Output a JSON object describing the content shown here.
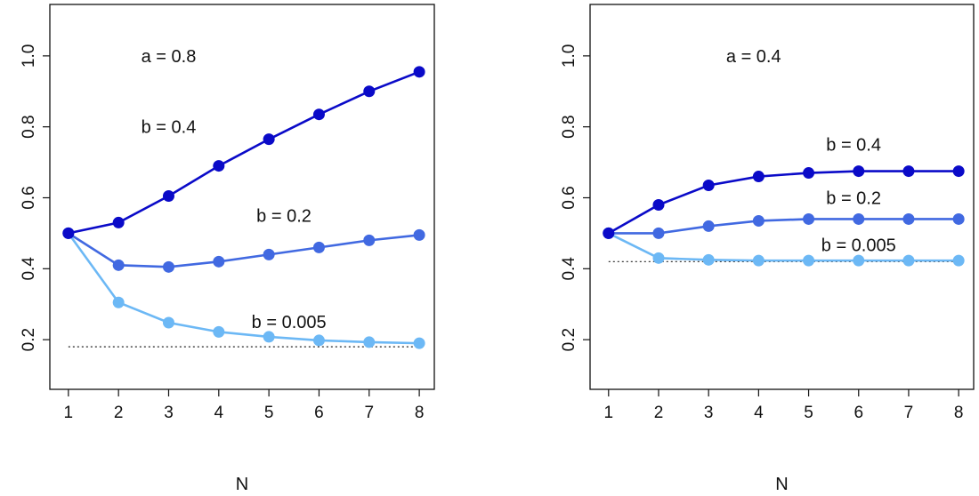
{
  "chart_data": [
    {
      "type": "line",
      "title": "",
      "xlabel": "N",
      "ylabel": "",
      "x": [
        1,
        2,
        3,
        4,
        5,
        6,
        7,
        8
      ],
      "xticks": [
        "1",
        "2",
        "3",
        "4",
        "5",
        "6",
        "7",
        "8"
      ],
      "yticks": [
        "0.2",
        "0.4",
        "0.6",
        "0.8",
        "1.0"
      ],
      "xlim": [
        0.63,
        8.3
      ],
      "ylim": [
        0.06,
        1.145
      ],
      "grid": false,
      "annotations": [
        "a = 0.8",
        "b = 0.4",
        "b = 0.2",
        "b = 0.005"
      ],
      "reference_line": {
        "y": 0.18,
        "style": "dotted"
      },
      "series": [
        {
          "name": "b = 0.4",
          "color": "#0a0ac8",
          "values": [
            0.5,
            0.53,
            0.605,
            0.69,
            0.765,
            0.835,
            0.9,
            0.955
          ]
        },
        {
          "name": "b = 0.2",
          "color": "#4169e1",
          "values": [
            0.5,
            0.41,
            0.405,
            0.42,
            0.44,
            0.46,
            0.48,
            0.495
          ]
        },
        {
          "name": "b = 0.005",
          "color": "#6cb8f5",
          "values": [
            0.5,
            0.305,
            0.248,
            0.222,
            0.208,
            0.198,
            0.193,
            0.19
          ]
        }
      ]
    },
    {
      "type": "line",
      "title": "",
      "xlabel": "N",
      "ylabel": "",
      "x": [
        1,
        2,
        3,
        4,
        5,
        6,
        7,
        8
      ],
      "xticks": [
        "1",
        "2",
        "3",
        "4",
        "5",
        "6",
        "7",
        "8"
      ],
      "yticks": [
        "0.2",
        "0.4",
        "0.6",
        "0.8",
        "1.0"
      ],
      "xlim": [
        0.63,
        8.3
      ],
      "ylim": [
        0.06,
        1.145
      ],
      "grid": false,
      "annotations": [
        "a = 0.4",
        "b = 0.4",
        "b = 0.2",
        "b = 0.005"
      ],
      "reference_line": {
        "y": 0.42,
        "style": "dotted"
      },
      "series": [
        {
          "name": "b = 0.4",
          "color": "#0a0ac8",
          "values": [
            0.5,
            0.58,
            0.635,
            0.66,
            0.67,
            0.675,
            0.675,
            0.675
          ]
        },
        {
          "name": "b = 0.2",
          "color": "#4169e1",
          "values": [
            0.5,
            0.5,
            0.52,
            0.535,
            0.54,
            0.54,
            0.54,
            0.54
          ]
        },
        {
          "name": "b = 0.005",
          "color": "#6cb8f5",
          "values": [
            0.5,
            0.43,
            0.425,
            0.423,
            0.423,
            0.423,
            0.423,
            0.423
          ]
        }
      ]
    }
  ]
}
